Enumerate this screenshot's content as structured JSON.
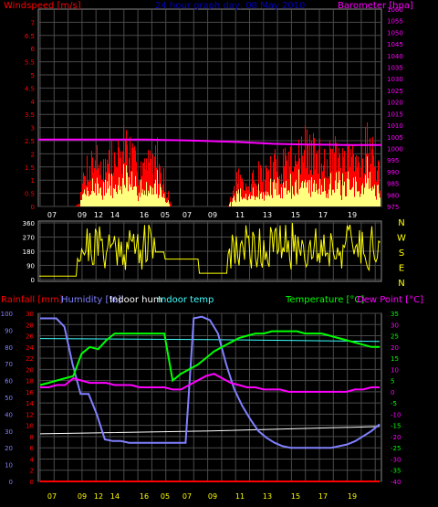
{
  "chart_data": [
    {
      "id": "wind",
      "type": "bar",
      "title": "24 hour graph day, 08 May 2010",
      "ylabel": "Windspeed [m/s]",
      "y2label": "Barometer [hpa]",
      "ylim": [
        0,
        7.5
      ],
      "y2lim": [
        975,
        1060
      ],
      "yticks": [
        "7",
        "6.5",
        "6",
        "5.5",
        "5",
        "4.5",
        "4",
        "3.5",
        "3",
        "2.5",
        "2",
        "1.5",
        "1",
        "0.5",
        "0"
      ],
      "y2ticks": [
        "1060",
        "1055",
        "1050",
        "1045",
        "1040",
        "1035",
        "1030",
        "1025",
        "1020",
        "1015",
        "1010",
        "1005",
        "1000",
        "995",
        "990",
        "985",
        "980",
        "975"
      ],
      "xticks": [
        "07",
        "09",
        "12",
        "14",
        "16",
        "05",
        "07",
        "09",
        "11",
        "13",
        "15",
        "17",
        "19"
      ],
      "grid": true,
      "series": [
        {
          "name": "gust",
          "color": "#ff0000"
        },
        {
          "name": "average",
          "color": "#ffff80"
        },
        {
          "name": "Barometer",
          "color": "#ff00ff",
          "values": [
            1003.8,
            1003.8,
            1003.8,
            1003.8,
            1003.8,
            1003.8,
            1003.8,
            1003.6,
            1003.5,
            1003.3,
            1003.0,
            1002.8,
            1002.4,
            1002.0,
            1001.8,
            1001.7,
            1001.6,
            1001.5,
            1001.5,
            1001.5
          ]
        }
      ],
      "gust_envelope": [
        0,
        0,
        0,
        0,
        0,
        0,
        0,
        0,
        0.2,
        1.8,
        2.2,
        2.4,
        2.2,
        2.0,
        2.4,
        2.2,
        2.8,
        3.3,
        2.4,
        2.0,
        2.4,
        2.0,
        2.2,
        2.6,
        1.8,
        0.8,
        0,
        0,
        0,
        0,
        0,
        0,
        0,
        0,
        0,
        0,
        0,
        0,
        0.8,
        1.5,
        0.8,
        1.2,
        1.4,
        1.6,
        1.5,
        1.8,
        2.0,
        2.2,
        2.4,
        2.3,
        2.4,
        2.6,
        2.8,
        2.8,
        2.6,
        2.4,
        2.6,
        2.8,
        2.4,
        2.2,
        2.0,
        2.4,
        2.2,
        2.6,
        3.4,
        2.8,
        1.8,
        1.4
      ]
    },
    {
      "id": "direction",
      "type": "line",
      "ylim": [
        0,
        360
      ],
      "yticks": [
        "360",
        "270",
        "180",
        "90",
        "0"
      ],
      "compass": [
        "N",
        "W",
        "S",
        "E",
        "N"
      ],
      "series": [
        {
          "name": "direction",
          "color": "#ffff00"
        }
      ]
    },
    {
      "id": "temp",
      "type": "line",
      "left_labels": [
        "Rainfall [mm]",
        "Humidity [%]",
        "Indoor hum",
        "Indoor temp"
      ],
      "right_labels": [
        "Temperature [°C]",
        "Dew Point [°C]"
      ],
      "yticks_hum": [
        "100",
        "90",
        "80",
        "70",
        "60",
        "50",
        "40",
        "30",
        "20",
        "10",
        "0"
      ],
      "yticks_in": [
        "30",
        "28",
        "26",
        "24",
        "22",
        "20",
        "18",
        "16",
        "14",
        "12",
        "10",
        "8",
        "6",
        "4",
        "2",
        "0"
      ],
      "yticks_t": [
        "35",
        "30",
        "25",
        "20",
        "15",
        "10",
        "5",
        "0",
        "-5",
        "-10",
        "-15",
        "-20",
        "-25",
        "-30",
        "-35",
        "-40"
      ],
      "xticks": [
        "07",
        "09",
        "12",
        "14",
        "16",
        "05",
        "07",
        "09",
        "11",
        "13",
        "15",
        "17",
        "19"
      ],
      "series": [
        {
          "name": "Humidity",
          "color": "#8080ff",
          "values": [
            97,
            97,
            97,
            92,
            70,
            52,
            52,
            40,
            25,
            24,
            24,
            23,
            23,
            23,
            23,
            23,
            23,
            23,
            23,
            97,
            98,
            96,
            88,
            70,
            55,
            45,
            37,
            30,
            26,
            23,
            21,
            20,
            20,
            20,
            20,
            20,
            20,
            21,
            22,
            24,
            27,
            30,
            34
          ]
        },
        {
          "name": "Temperature",
          "color": "#00ff00",
          "values": [
            3,
            4,
            5,
            6,
            7,
            17,
            20,
            19,
            23,
            26,
            26,
            26,
            26,
            26,
            26,
            26,
            5,
            8,
            10,
            12,
            15,
            18,
            20,
            22,
            24,
            25,
            26,
            26,
            27,
            27,
            27,
            27,
            26,
            26,
            26,
            25,
            24,
            23,
            22,
            21,
            20,
            20
          ]
        },
        {
          "name": "Dew Point",
          "color": "#ff00ff",
          "values": [
            2,
            2,
            3,
            3,
            6,
            5,
            4,
            4,
            4,
            3,
            3,
            3,
            2,
            2,
            2,
            2,
            1,
            1,
            3,
            5,
            7,
            8,
            6,
            4,
            3,
            2,
            2,
            1,
            1,
            1,
            0,
            0,
            0,
            0,
            0,
            0,
            0,
            0,
            1,
            1,
            2,
            2
          ]
        },
        {
          "name": "Indoor temp",
          "color": "#40ffff",
          "values": [
            25.5,
            25.3,
            25.0
          ]
        },
        {
          "name": "Indoor hum",
          "color": "#ffffff",
          "values": [
            8.5,
            9.0,
            9.8
          ]
        },
        {
          "name": "Rainfall",
          "color": "#ff0000",
          "values": [
            0,
            0,
            0
          ]
        }
      ]
    }
  ]
}
